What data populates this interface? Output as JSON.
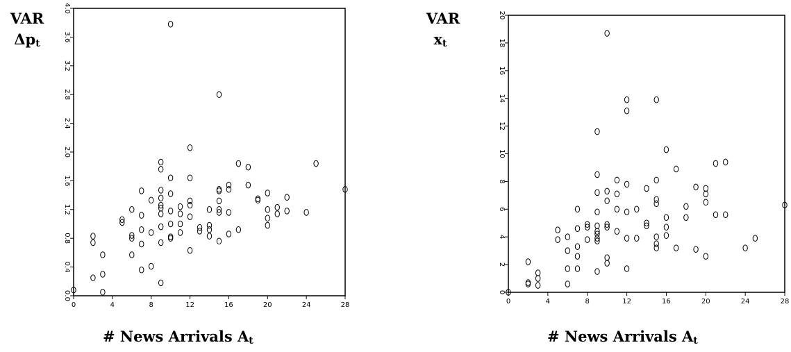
{
  "chart_data": [
    {
      "type": "scatter",
      "ylabel": {
        "main": "VAR",
        "sub_symbol": "Δp",
        "subscript": "t"
      },
      "xlabel": {
        "main": "# News Arrivals A",
        "subscript": "t"
      },
      "xlim": [
        0,
        28
      ],
      "ylim": [
        0,
        4.0
      ],
      "xticks": [
        "0",
        "4",
        "8",
        "12",
        "16",
        "20",
        "24",
        "28"
      ],
      "yticks": [
        "0.0",
        "0.4",
        "0.8",
        "1.2",
        "1.6",
        "2.0",
        "2.4",
        "2.8",
        "3.2",
        "3.6",
        "4.0"
      ],
      "points": [
        {
          "x": 0,
          "y": 0.08
        },
        {
          "x": 2,
          "y": 0.25
        },
        {
          "x": 2,
          "y": 0.74
        },
        {
          "x": 2,
          "y": 0.83
        },
        {
          "x": 3,
          "y": 0.05
        },
        {
          "x": 3,
          "y": 0.3
        },
        {
          "x": 3,
          "y": 0.57
        },
        {
          "x": 5,
          "y": 1.02
        },
        {
          "x": 5,
          "y": 1.06
        },
        {
          "x": 6,
          "y": 0.57
        },
        {
          "x": 6,
          "y": 0.8
        },
        {
          "x": 6,
          "y": 0.84
        },
        {
          "x": 6,
          "y": 1.2
        },
        {
          "x": 7,
          "y": 0.36
        },
        {
          "x": 7,
          "y": 0.72
        },
        {
          "x": 7,
          "y": 0.92
        },
        {
          "x": 7,
          "y": 1.12
        },
        {
          "x": 7,
          "y": 1.46
        },
        {
          "x": 8,
          "y": 0.41
        },
        {
          "x": 8,
          "y": 0.88
        },
        {
          "x": 8,
          "y": 1.33
        },
        {
          "x": 9,
          "y": 0.18
        },
        {
          "x": 9,
          "y": 0.74
        },
        {
          "x": 9,
          "y": 0.96
        },
        {
          "x": 9,
          "y": 1.14
        },
        {
          "x": 9,
          "y": 1.22
        },
        {
          "x": 9,
          "y": 1.26
        },
        {
          "x": 9,
          "y": 1.36
        },
        {
          "x": 9,
          "y": 1.47
        },
        {
          "x": 9,
          "y": 1.76
        },
        {
          "x": 9,
          "y": 1.86
        },
        {
          "x": 10,
          "y": 0.8
        },
        {
          "x": 10,
          "y": 0.82
        },
        {
          "x": 10,
          "y": 1.0
        },
        {
          "x": 10,
          "y": 1.18
        },
        {
          "x": 10,
          "y": 1.42
        },
        {
          "x": 10,
          "y": 1.64
        },
        {
          "x": 10,
          "y": 3.78
        },
        {
          "x": 11,
          "y": 0.88
        },
        {
          "x": 11,
          "y": 1.0
        },
        {
          "x": 11,
          "y": 1.14
        },
        {
          "x": 11,
          "y": 1.24
        },
        {
          "x": 12,
          "y": 0.63
        },
        {
          "x": 12,
          "y": 1.1
        },
        {
          "x": 12,
          "y": 1.26
        },
        {
          "x": 12,
          "y": 1.32
        },
        {
          "x": 12,
          "y": 1.64
        },
        {
          "x": 12,
          "y": 2.06
        },
        {
          "x": 13,
          "y": 0.9
        },
        {
          "x": 13,
          "y": 0.95
        },
        {
          "x": 14,
          "y": 0.83
        },
        {
          "x": 14,
          "y": 0.92
        },
        {
          "x": 14,
          "y": 0.98
        },
        {
          "x": 14,
          "y": 1.2
        },
        {
          "x": 15,
          "y": 0.76
        },
        {
          "x": 15,
          "y": 1.16
        },
        {
          "x": 15,
          "y": 1.2
        },
        {
          "x": 15,
          "y": 1.32
        },
        {
          "x": 15,
          "y": 1.46
        },
        {
          "x": 15,
          "y": 1.48
        },
        {
          "x": 15,
          "y": 2.8
        },
        {
          "x": 16,
          "y": 0.86
        },
        {
          "x": 16,
          "y": 1.16
        },
        {
          "x": 16,
          "y": 1.48
        },
        {
          "x": 16,
          "y": 1.54
        },
        {
          "x": 17,
          "y": 0.92
        },
        {
          "x": 17,
          "y": 1.84
        },
        {
          "x": 18,
          "y": 1.54
        },
        {
          "x": 18,
          "y": 1.79
        },
        {
          "x": 19,
          "y": 1.33
        },
        {
          "x": 19,
          "y": 1.35
        },
        {
          "x": 20,
          "y": 0.98
        },
        {
          "x": 20,
          "y": 1.08
        },
        {
          "x": 20,
          "y": 1.2
        },
        {
          "x": 20,
          "y": 1.43
        },
        {
          "x": 21,
          "y": 1.14
        },
        {
          "x": 21,
          "y": 1.23
        },
        {
          "x": 22,
          "y": 1.18
        },
        {
          "x": 22,
          "y": 1.37
        },
        {
          "x": 24,
          "y": 1.16
        },
        {
          "x": 25,
          "y": 1.84
        },
        {
          "x": 28,
          "y": 1.48
        }
      ]
    },
    {
      "type": "scatter",
      "ylabel": {
        "main": "VAR",
        "sub_symbol": "x",
        "subscript": "t"
      },
      "xlabel": {
        "main": "# News Arrivals A",
        "subscript": "t"
      },
      "xlim": [
        0,
        28
      ],
      "ylim": [
        0,
        20
      ],
      "xticks": [
        "0",
        "4",
        "8",
        "12",
        "16",
        "20",
        "24",
        "28"
      ],
      "yticks": [
        "0",
        "2",
        "4",
        "6",
        "8",
        "10",
        "12",
        "14",
        "16",
        "18",
        "20"
      ],
      "points": [
        {
          "x": 0,
          "y": 0.0
        },
        {
          "x": 2,
          "y": 0.6
        },
        {
          "x": 2,
          "y": 0.7
        },
        {
          "x": 2,
          "y": 2.2
        },
        {
          "x": 3,
          "y": 0.5
        },
        {
          "x": 3,
          "y": 1.0
        },
        {
          "x": 3,
          "y": 1.4
        },
        {
          "x": 5,
          "y": 3.8
        },
        {
          "x": 5,
          "y": 4.5
        },
        {
          "x": 6,
          "y": 0.6
        },
        {
          "x": 6,
          "y": 1.7
        },
        {
          "x": 6,
          "y": 3.0
        },
        {
          "x": 6,
          "y": 4.0
        },
        {
          "x": 7,
          "y": 1.7
        },
        {
          "x": 7,
          "y": 2.6
        },
        {
          "x": 7,
          "y": 3.3
        },
        {
          "x": 7,
          "y": 4.6
        },
        {
          "x": 7,
          "y": 6.0
        },
        {
          "x": 8,
          "y": 3.8
        },
        {
          "x": 8,
          "y": 4.7
        },
        {
          "x": 8,
          "y": 4.9
        },
        {
          "x": 9,
          "y": 1.5
        },
        {
          "x": 9,
          "y": 3.7
        },
        {
          "x": 9,
          "y": 3.9
        },
        {
          "x": 9,
          "y": 4.2
        },
        {
          "x": 9,
          "y": 4.4
        },
        {
          "x": 9,
          "y": 4.8
        },
        {
          "x": 9,
          "y": 5.8
        },
        {
          "x": 9,
          "y": 7.2
        },
        {
          "x": 9,
          "y": 8.5
        },
        {
          "x": 9,
          "y": 11.6
        },
        {
          "x": 10,
          "y": 2.1
        },
        {
          "x": 10,
          "y": 2.5
        },
        {
          "x": 10,
          "y": 4.7
        },
        {
          "x": 10,
          "y": 4.9
        },
        {
          "x": 10,
          "y": 6.6
        },
        {
          "x": 10,
          "y": 7.3
        },
        {
          "x": 10,
          "y": 18.7
        },
        {
          "x": 11,
          "y": 4.4
        },
        {
          "x": 11,
          "y": 6.0
        },
        {
          "x": 11,
          "y": 7.1
        },
        {
          "x": 11,
          "y": 8.1
        },
        {
          "x": 12,
          "y": 1.7
        },
        {
          "x": 12,
          "y": 3.9
        },
        {
          "x": 12,
          "y": 5.8
        },
        {
          "x": 12,
          "y": 7.8
        },
        {
          "x": 12,
          "y": 13.1
        },
        {
          "x": 12,
          "y": 13.9
        },
        {
          "x": 13,
          "y": 3.9
        },
        {
          "x": 13,
          "y": 6.0
        },
        {
          "x": 14,
          "y": 4.8
        },
        {
          "x": 14,
          "y": 5.0
        },
        {
          "x": 14,
          "y": 7.5
        },
        {
          "x": 15,
          "y": 3.2
        },
        {
          "x": 15,
          "y": 3.5
        },
        {
          "x": 15,
          "y": 4.0
        },
        {
          "x": 15,
          "y": 6.4
        },
        {
          "x": 15,
          "y": 6.7
        },
        {
          "x": 15,
          "y": 8.1
        },
        {
          "x": 15,
          "y": 13.9
        },
        {
          "x": 16,
          "y": 4.1
        },
        {
          "x": 16,
          "y": 4.7
        },
        {
          "x": 16,
          "y": 5.4
        },
        {
          "x": 16,
          "y": 10.3
        },
        {
          "x": 17,
          "y": 3.2
        },
        {
          "x": 17,
          "y": 8.9
        },
        {
          "x": 18,
          "y": 5.4
        },
        {
          "x": 18,
          "y": 6.2
        },
        {
          "x": 19,
          "y": 3.1
        },
        {
          "x": 19,
          "y": 7.6
        },
        {
          "x": 20,
          "y": 2.6
        },
        {
          "x": 20,
          "y": 6.5
        },
        {
          "x": 20,
          "y": 7.1
        },
        {
          "x": 20,
          "y": 7.5
        },
        {
          "x": 21,
          "y": 5.6
        },
        {
          "x": 21,
          "y": 9.3
        },
        {
          "x": 22,
          "y": 5.6
        },
        {
          "x": 22,
          "y": 9.4
        },
        {
          "x": 24,
          "y": 3.2
        },
        {
          "x": 25,
          "y": 3.9
        },
        {
          "x": 28,
          "y": 6.3
        }
      ]
    }
  ]
}
